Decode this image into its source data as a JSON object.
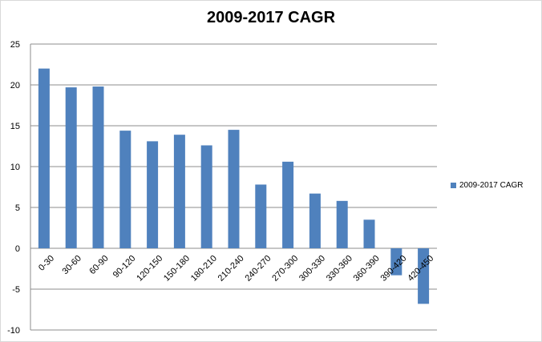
{
  "chart_data": {
    "type": "bar",
    "title": "2009-2017 CAGR",
    "xlabel": "",
    "ylabel": "",
    "ylim": [
      -10,
      25
    ],
    "yticks": [
      -10,
      -5,
      0,
      5,
      10,
      15,
      20,
      25
    ],
    "grid": true,
    "legend_position": "right",
    "categories": [
      "0-30",
      "30-60",
      "60-90",
      "90-120",
      "120-150",
      "150-180",
      "180-210",
      "210-240",
      "240-270",
      "270-300",
      "300-330",
      "330-360",
      "360-390",
      "390-420",
      "420-450"
    ],
    "series": [
      {
        "name": "2009-2017 CAGR",
        "color": "#4f81bd",
        "values": [
          22.0,
          19.7,
          19.8,
          14.4,
          13.1,
          13.9,
          12.6,
          14.5,
          7.8,
          10.6,
          6.7,
          5.8,
          3.5,
          -3.3,
          -6.8
        ]
      }
    ]
  }
}
